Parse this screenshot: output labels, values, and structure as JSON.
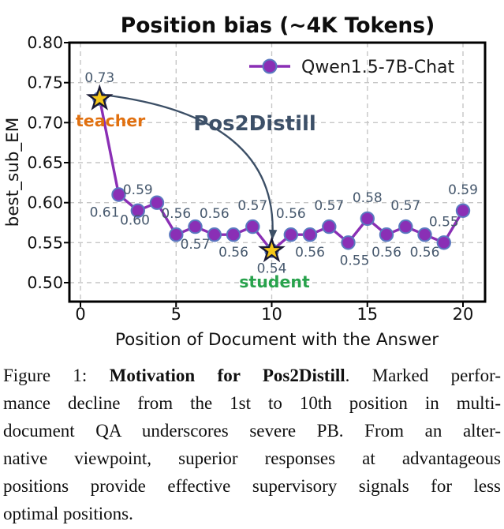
{
  "figure": {
    "caption_lines": [
      {
        "last": false,
        "segments": [
          {
            "text": "Figure 1: ",
            "bold": false
          },
          {
            "text": "Motivation for Pos2Distill",
            "bold": true
          },
          {
            "text": ". Marked perfor-",
            "bold": false
          }
        ]
      },
      {
        "last": false,
        "segments": [
          {
            "text": "mance decline from the 1st to 10th position in multi-",
            "bold": false
          }
        ]
      },
      {
        "last": false,
        "segments": [
          {
            "text": "document QA underscores severe PB. From an alter-",
            "bold": false
          }
        ]
      },
      {
        "last": false,
        "segments": [
          {
            "text": "native viewpoint, superior responses at advantageous",
            "bold": false
          }
        ]
      },
      {
        "last": false,
        "segments": [
          {
            "text": "positions provide effective supervisory signals for less",
            "bold": false
          }
        ]
      },
      {
        "last": true,
        "segments": [
          {
            "text": "optimal positions.",
            "bold": false
          }
        ]
      }
    ]
  },
  "chart_data": {
    "type": "line",
    "title": "Position bias (~4K Tokens)",
    "xlabel": "Position of Document with the Answer",
    "ylabel": "best_sub_EM",
    "xlim": [
      -0.6,
      21.2
    ],
    "ylim": [
      0.476,
      0.8
    ],
    "xticks": [
      0,
      5,
      10,
      15,
      20
    ],
    "yticks": [
      0.5,
      0.55,
      0.6,
      0.65,
      0.7,
      0.75,
      0.8
    ],
    "grid": true,
    "legend": {
      "position": "upper right",
      "frame": false,
      "entries": [
        {
          "label": "Qwen1.5-7B-Chat",
          "marker": "circle"
        }
      ]
    },
    "series": [
      {
        "name": "Qwen1.5-7B-Chat",
        "x": [
          1,
          2,
          3,
          4,
          5,
          6,
          7,
          8,
          9,
          10,
          11,
          12,
          13,
          14,
          15,
          16,
          17,
          18,
          19,
          20
        ],
        "y": [
          0.73,
          0.61,
          0.59,
          0.6,
          0.56,
          0.57,
          0.56,
          0.56,
          0.57,
          0.54,
          0.56,
          0.56,
          0.57,
          0.55,
          0.58,
          0.56,
          0.57,
          0.56,
          0.55,
          0.59
        ],
        "point_labels": [
          "0.73",
          "0.61",
          "0.59",
          "0.60",
          "0.56",
          "0.57",
          "0.56",
          "0.56",
          "0.57",
          "0.54",
          "0.56",
          "0.56",
          "0.57",
          "0.55",
          "0.58",
          "0.56",
          "0.57",
          "0.56",
          "0.55",
          "0.59"
        ],
        "label_side": [
          "above",
          "below",
          "above",
          "below",
          "above",
          "below",
          "above",
          "below",
          "above",
          "below",
          "above",
          "below",
          "above",
          "below",
          "above",
          "below",
          "above",
          "below",
          "above",
          "above"
        ]
      }
    ],
    "annotations": {
      "teacher": {
        "text": "teacher",
        "at_position": 1,
        "value": 0.73
      },
      "student": {
        "text": "student",
        "at_position": 10,
        "value": 0.54
      },
      "arrow_label": {
        "text": "Pos2Distill"
      },
      "star_points": [
        1,
        10
      ]
    },
    "colors": {
      "series": "#8a2fb5",
      "marker_edge": "#5b79c0",
      "star_fill": "#f5c71b",
      "star_edge": "#191934",
      "arrow": "#3c4f66",
      "point_label": "#46586d",
      "teacher": "#e1700f",
      "student": "#28a24c",
      "pos2distill": "#3d5068",
      "grid": "#c6c6c6",
      "axis": "#000000"
    }
  }
}
